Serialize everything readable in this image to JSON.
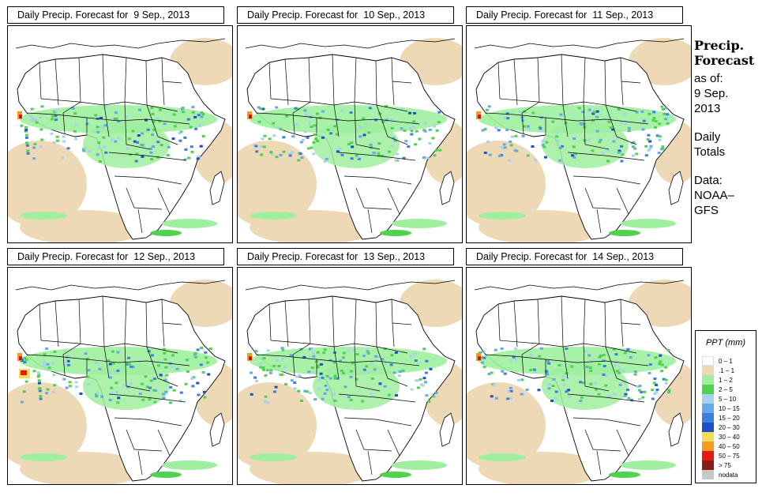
{
  "panels": [
    {
      "title": "Daily Precip. Forecast for  9 Sep., 2013"
    },
    {
      "title": "Daily Precip. Forecast for  10 Sep., 2013"
    },
    {
      "title": "Daily Precip. Forecast for  11 Sep., 2013"
    },
    {
      "title": "Daily Precip. Forecast for  12 Sep., 2013"
    },
    {
      "title": "Daily Precip. Forecast for  13 Sep., 2013"
    },
    {
      "title": "Daily Precip. Forecast for  14 Sep., 2013"
    }
  ],
  "side": {
    "heading_line1": "Precip.",
    "heading_line2": "Forecast",
    "asof_label": "as of:",
    "date_line1": "9 Sep.",
    "date_line2": "2013",
    "daily_line1": "Daily",
    "daily_line2": "Totals",
    "data_line1": "Data:",
    "data_line2": "NOAA–",
    "data_line3": "GFS"
  },
  "legend": {
    "title": "PPT (mm)",
    "items": [
      {
        "label": "0 – 1",
        "color": "#ffffff"
      },
      {
        "label": ".1 – 1",
        "color": "#eed9b6"
      },
      {
        "label": "1 – 2",
        "color": "#9fef9f"
      },
      {
        "label": "2 – 5",
        "color": "#4fd34f"
      },
      {
        "label": "5 – 10",
        "color": "#a8d0f0"
      },
      {
        "label": "10 – 15",
        "color": "#66a8e8"
      },
      {
        "label": "15 – 20",
        "color": "#3b7fe0"
      },
      {
        "label": "20 – 30",
        "color": "#1c4fc8"
      },
      {
        "label": "30 – 40",
        "color": "#f3dd55"
      },
      {
        "label": "40 – 50",
        "color": "#f59a22"
      },
      {
        "label": "50 – 75",
        "color": "#e51a10"
      },
      {
        "label": "> 75",
        "color": "#8b1a1a"
      },
      {
        "label": "nodata",
        "color": "#c8c8c8"
      }
    ]
  }
}
